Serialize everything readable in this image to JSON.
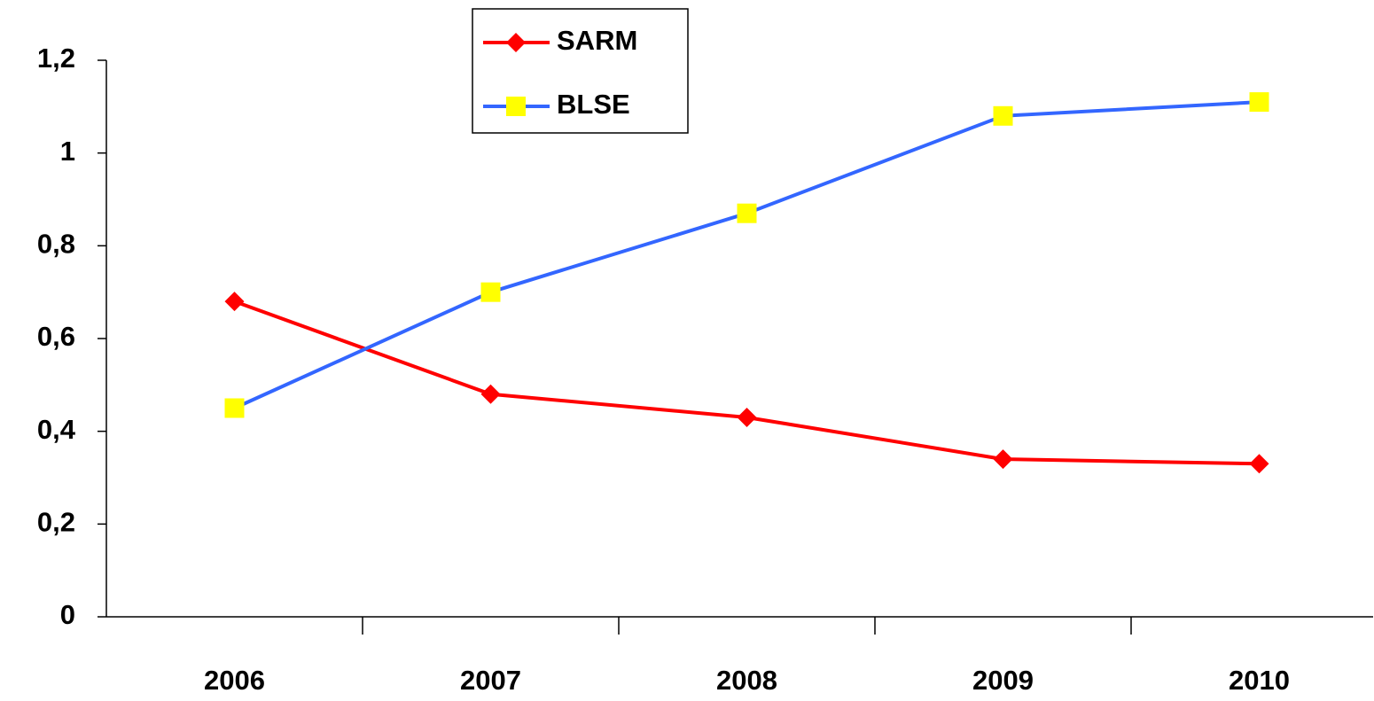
{
  "chart_data": {
    "type": "line",
    "categories": [
      "2006",
      "2007",
      "2008",
      "2009",
      "2010"
    ],
    "series": [
      {
        "name": "SARM",
        "color": "#ff0000",
        "marker": "diamond",
        "marker_color": "#ff0000",
        "values": [
          0.68,
          0.48,
          0.43,
          0.34,
          0.33
        ]
      },
      {
        "name": "BLSE",
        "color": "#3366ff",
        "marker": "square",
        "marker_color": "#ffff00",
        "values": [
          0.45,
          0.7,
          0.87,
          1.08,
          1.11
        ]
      }
    ],
    "ylim": [
      0,
      1.2
    ],
    "yticks": [
      0,
      {
        "value": 0.2,
        "label": "0,2"
      },
      {
        "value": 0.4,
        "label": "0,4"
      },
      {
        "value": 0.6,
        "label": "0,6"
      },
      {
        "value": 0.8,
        "label": "0,8"
      },
      1,
      {
        "value": 1.2,
        "label": "1,2"
      }
    ],
    "legend": "top"
  }
}
